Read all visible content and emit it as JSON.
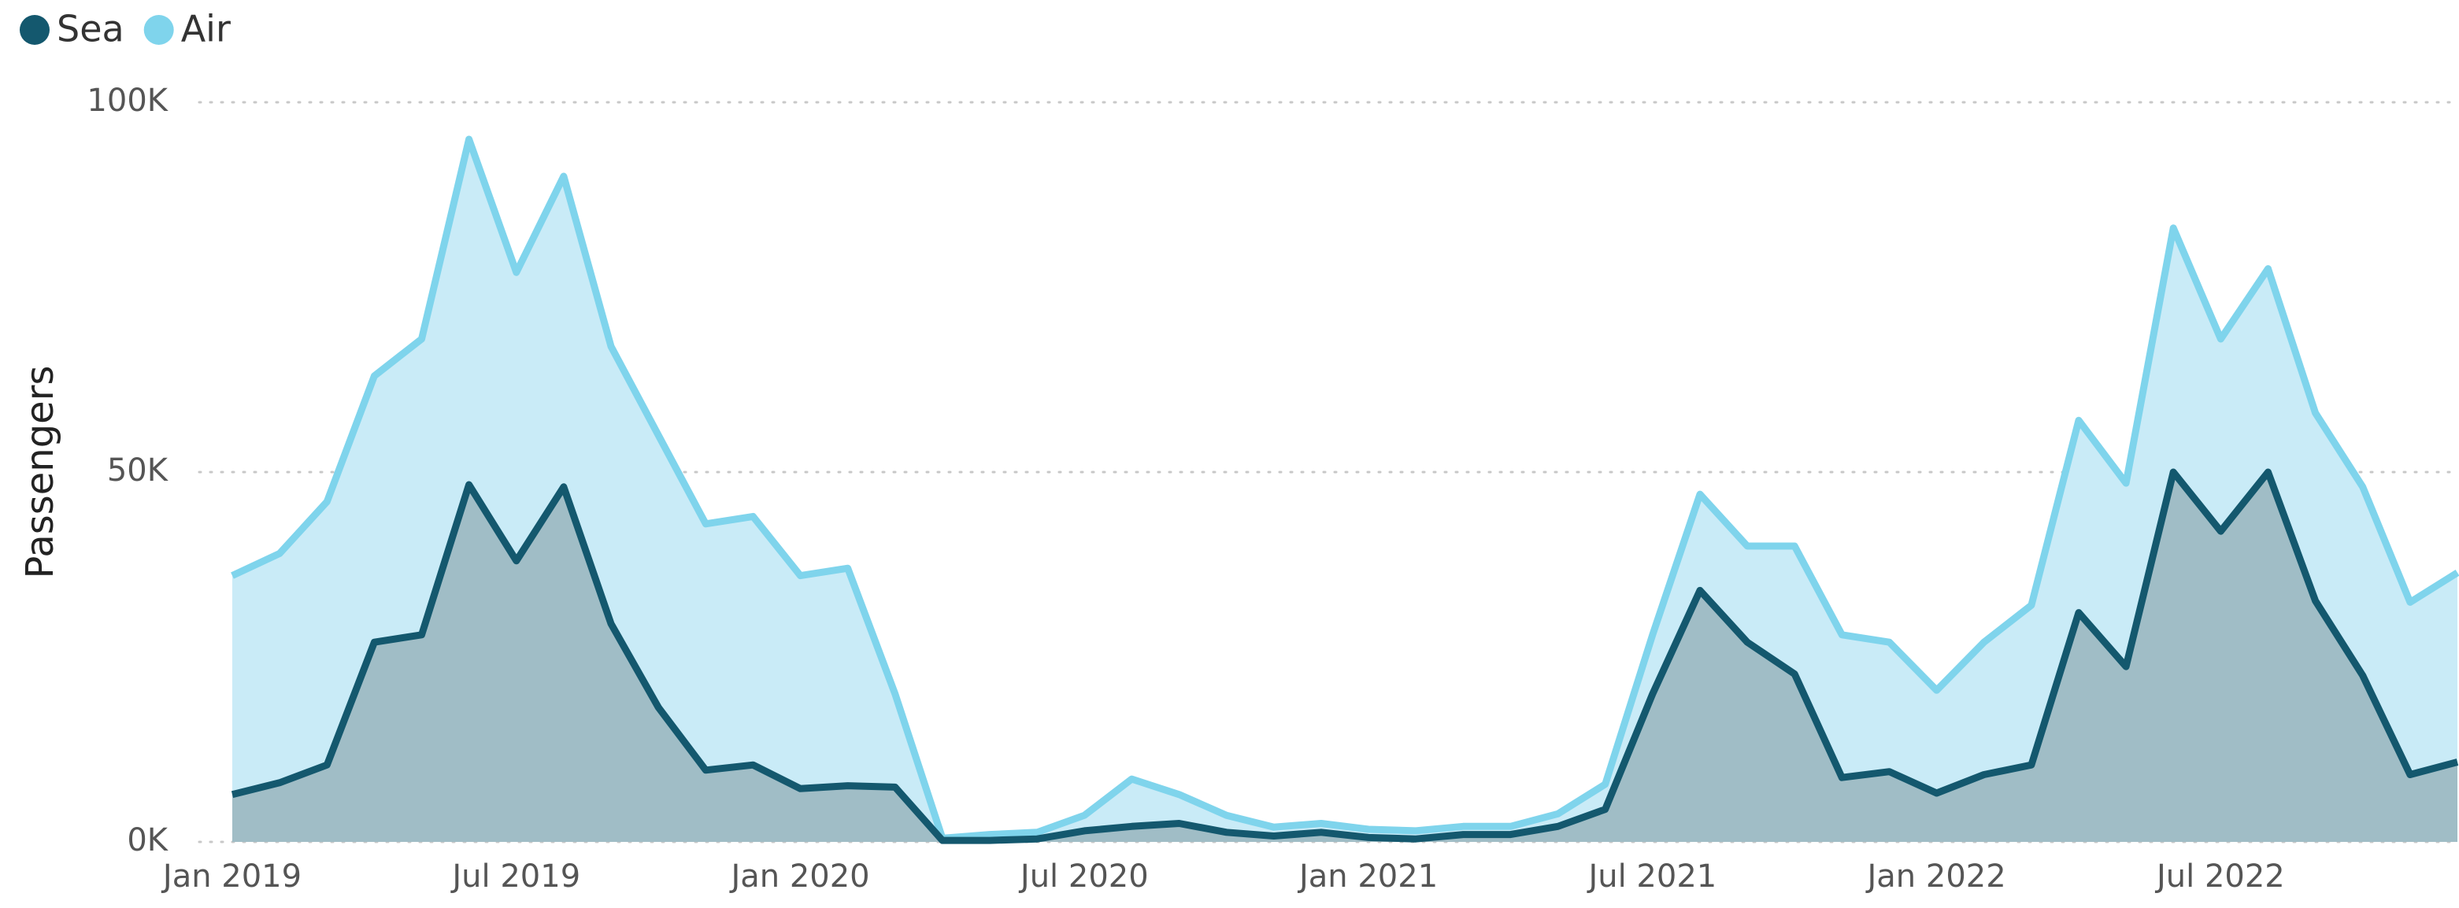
{
  "chart_data": {
    "type": "area",
    "ylabel": "Passengers",
    "legend": "top-left",
    "grid": true,
    "categories": [
      "Jan 2019",
      null,
      null,
      null,
      null,
      null,
      "Jul 2019",
      null,
      null,
      null,
      null,
      null,
      "Jan 2020",
      null,
      null,
      null,
      null,
      null,
      "Jul 2020",
      null,
      null,
      null,
      null,
      null,
      "Jan 2021",
      null,
      null,
      null,
      null,
      null,
      "Jul 2021",
      null,
      null,
      null,
      null,
      null,
      "Jan 2022",
      null,
      null,
      null,
      null,
      null,
      "Jul 2022",
      null,
      null,
      null,
      null,
      null
    ],
    "ylim": [
      0,
      100000
    ],
    "yticks": [
      {
        "value": 0,
        "label": "0K"
      },
      {
        "value": 50000,
        "label": "50K"
      },
      {
        "value": 100000,
        "label": "100K"
      }
    ],
    "series": [
      {
        "name": "Air",
        "color": "#7fd4ec",
        "fill": "#c9ebf7",
        "values": [
          36000,
          39000,
          46000,
          63000,
          68000,
          95000,
          77000,
          90000,
          67000,
          55000,
          43000,
          44000,
          36000,
          37000,
          20000,
          500,
          1000,
          1300,
          3600,
          8500,
          6400,
          3600,
          2000,
          2500,
          1700,
          1500,
          2100,
          2100,
          3800,
          7800,
          28000,
          47000,
          40000,
          40000,
          28000,
          27000,
          20500,
          27000,
          32000,
          57000,
          48500,
          83000,
          68000,
          77500,
          58000,
          48000,
          32400,
          36400
        ]
      },
      {
        "name": "Sea",
        "color": "#14586e",
        "fill": "#a0bdc6",
        "values": [
          6400,
          8000,
          10400,
          27000,
          28000,
          48300,
          38000,
          48000,
          29500,
          18200,
          9700,
          10400,
          7200,
          7600,
          7400,
          200,
          200,
          400,
          1500,
          2100,
          2500,
          1300,
          800,
          1300,
          600,
          400,
          1000,
          1000,
          2100,
          4400,
          20000,
          34000,
          27000,
          22700,
          8700,
          9500,
          6600,
          9100,
          10400,
          31000,
          23700,
          50000,
          42000,
          50000,
          32600,
          22500,
          9100,
          10800
        ]
      }
    ]
  }
}
